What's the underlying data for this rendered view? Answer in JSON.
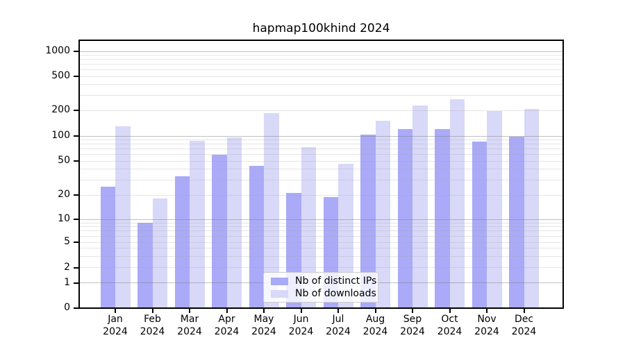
{
  "title": "hapmap100khind 2024",
  "chart_data": {
    "type": "bar",
    "title": "hapmap100khind 2024",
    "categories": [
      "Jan 2024",
      "Feb 2024",
      "Mar 2024",
      "Apr 2024",
      "May 2024",
      "Jun 2024",
      "Jul 2024",
      "Aug 2024",
      "Sep 2024",
      "Oct 2024",
      "Nov 2024",
      "Dec 2024"
    ],
    "series": [
      {
        "name": "Nb of distinct IPs",
        "color": "#aaaaf8",
        "values": [
          25,
          9,
          33,
          60,
          44,
          21,
          19,
          103,
          120,
          120,
          86,
          99
        ]
      },
      {
        "name": "Nb of downloads",
        "color": "#d8d8f8",
        "values": [
          130,
          18,
          88,
          96,
          185,
          74,
          46,
          150,
          230,
          270,
          195,
          207
        ]
      }
    ],
    "xlabel": "",
    "ylabel": "",
    "yscale": "symlog",
    "yticks": [
      0,
      1,
      2,
      5,
      10,
      20,
      50,
      100,
      200,
      500,
      1000
    ],
    "ylim": [
      0,
      1300
    ],
    "grid": true,
    "legend_position": "lower center",
    "background": "#ffffff",
    "grid_minor_color": "#ebebeb",
    "grid_major_color": "#c2c2c2"
  }
}
